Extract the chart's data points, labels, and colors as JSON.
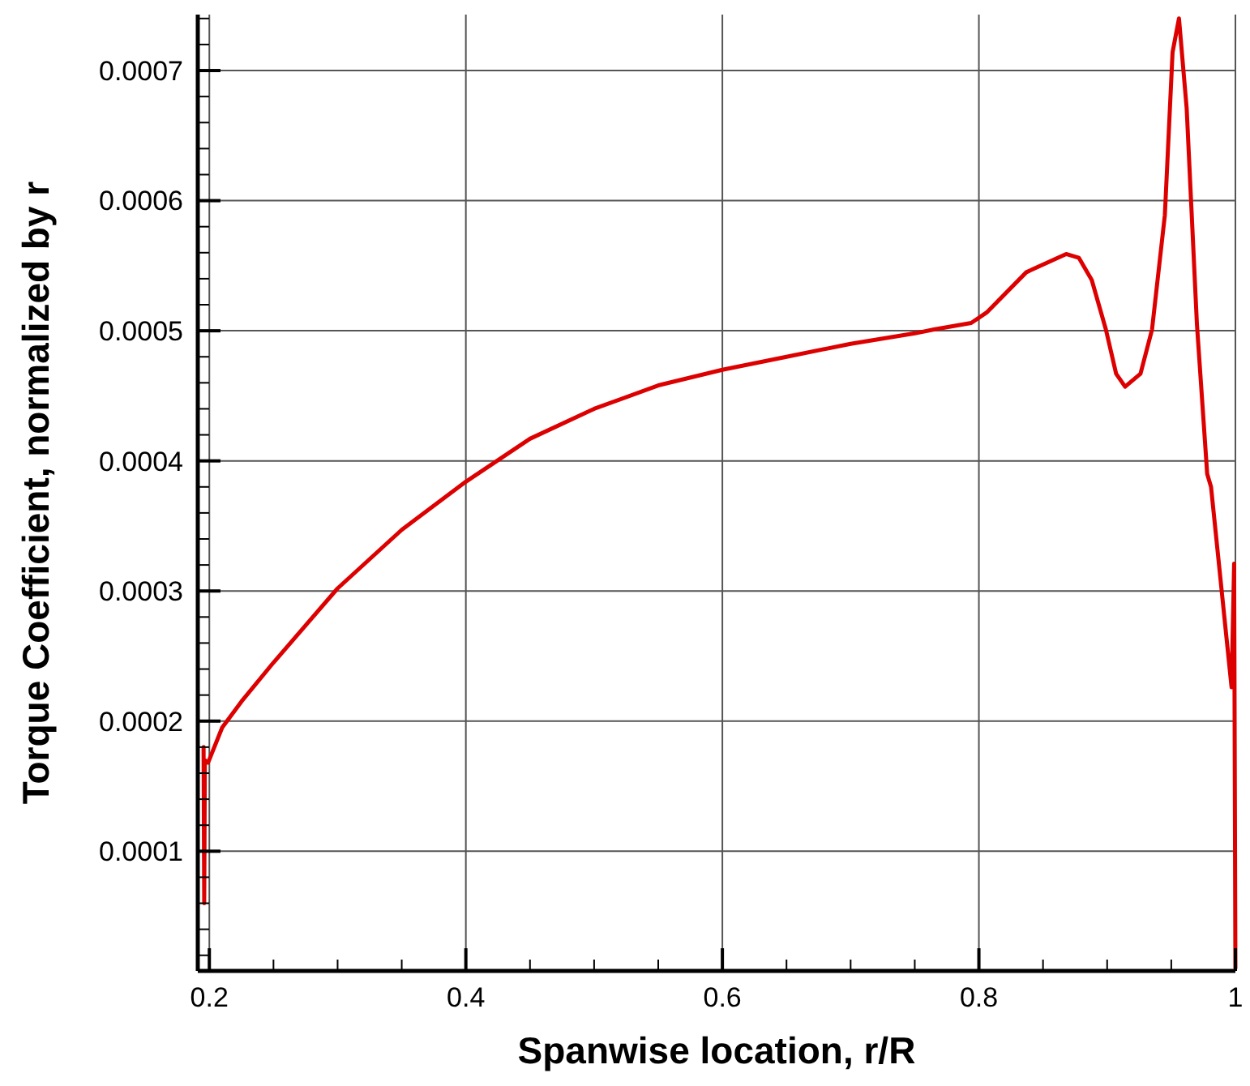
{
  "chart_data": {
    "type": "line",
    "xlabel": "Spanwise location, r/R",
    "ylabel": "Torque Coefficient, normalized by r",
    "xlim": [
      0.191,
      1.0
    ],
    "ylim": [
      8e-06,
      0.000743
    ],
    "xticks": [
      {
        "value": 0.2,
        "label": "0.2"
      },
      {
        "value": 0.25,
        "label": null
      },
      {
        "value": 0.3,
        "label": null
      },
      {
        "value": 0.35,
        "label": null
      },
      {
        "value": 0.4,
        "label": "0.4"
      },
      {
        "value": 0.45,
        "label": null
      },
      {
        "value": 0.5,
        "label": null
      },
      {
        "value": 0.55,
        "label": null
      },
      {
        "value": 0.6,
        "label": "0.6"
      },
      {
        "value": 0.65,
        "label": null
      },
      {
        "value": 0.7,
        "label": null
      },
      {
        "value": 0.75,
        "label": null
      },
      {
        "value": 0.8,
        "label": "0.8"
      },
      {
        "value": 0.85,
        "label": null
      },
      {
        "value": 0.9,
        "label": null
      },
      {
        "value": 0.95,
        "label": null
      },
      {
        "value": 1.0,
        "label": "1"
      }
    ],
    "yticks": [
      {
        "value": 2e-05,
        "label": null
      },
      {
        "value": 4e-05,
        "label": null
      },
      {
        "value": 6e-05,
        "label": null
      },
      {
        "value": 8e-05,
        "label": null
      },
      {
        "value": 0.0001,
        "label": "0.0001"
      },
      {
        "value": 0.00012,
        "label": null
      },
      {
        "value": 0.00014,
        "label": null
      },
      {
        "value": 0.00016,
        "label": null
      },
      {
        "value": 0.00018,
        "label": null
      },
      {
        "value": 0.0002,
        "label": "0.0002"
      },
      {
        "value": 0.00022,
        "label": null
      },
      {
        "value": 0.00024,
        "label": null
      },
      {
        "value": 0.00026,
        "label": null
      },
      {
        "value": 0.00028,
        "label": null
      },
      {
        "value": 0.0003,
        "label": "0.0003"
      },
      {
        "value": 0.00032,
        "label": null
      },
      {
        "value": 0.00034,
        "label": null
      },
      {
        "value": 0.00036,
        "label": null
      },
      {
        "value": 0.00038,
        "label": null
      },
      {
        "value": 0.0004,
        "label": "0.0004"
      },
      {
        "value": 0.00042,
        "label": null
      },
      {
        "value": 0.00044,
        "label": null
      },
      {
        "value": 0.00046,
        "label": null
      },
      {
        "value": 0.00048,
        "label": null
      },
      {
        "value": 0.0005,
        "label": "0.0005"
      },
      {
        "value": 0.00052,
        "label": null
      },
      {
        "value": 0.00054,
        "label": null
      },
      {
        "value": 0.00056,
        "label": null
      },
      {
        "value": 0.00058,
        "label": null
      },
      {
        "value": 0.0006,
        "label": "0.0006"
      },
      {
        "value": 0.00062,
        "label": null
      },
      {
        "value": 0.00064,
        "label": null
      },
      {
        "value": 0.00066,
        "label": null
      },
      {
        "value": 0.00068,
        "label": null
      },
      {
        "value": 0.0007,
        "label": "0.0007"
      },
      {
        "value": 0.00072,
        "label": null
      },
      {
        "value": 0.00074,
        "label": null
      }
    ],
    "grid": true,
    "marker": "none",
    "line_style": "solid",
    "series": [
      {
        "color": "#dd0000",
        "x": [
          0.1955,
          0.196,
          0.1965,
          0.199,
          0.21,
          0.225,
          0.25,
          0.3,
          0.35,
          0.4,
          0.45,
          0.5,
          0.55,
          0.6,
          0.65,
          0.7,
          0.75,
          0.765,
          0.794,
          0.806,
          0.837,
          0.868,
          0.878,
          0.888,
          0.899,
          0.907,
          0.914,
          0.926,
          0.935,
          0.945,
          0.951,
          0.956,
          0.962,
          0.97,
          0.978,
          0.981,
          0.997,
          0.999,
          1.0
        ],
        "values": [
          0.00018,
          6e-05,
          0.00017,
          0.000168,
          0.000195,
          0.000215,
          0.000245,
          0.000302,
          0.000347,
          0.000384,
          0.000417,
          0.00044,
          0.000458,
          0.00047,
          0.00048,
          0.00049,
          0.000498,
          0.000501,
          0.000506,
          0.000514,
          0.000545,
          0.000559,
          0.000556,
          0.000539,
          0.000501,
          0.000467,
          0.000457,
          0.000467,
          0.000501,
          0.000589,
          0.000714,
          0.00074,
          0.000671,
          0.000505,
          0.00039,
          0.00038,
          0.000226,
          0.000321,
          1e-05
        ]
      }
    ]
  }
}
